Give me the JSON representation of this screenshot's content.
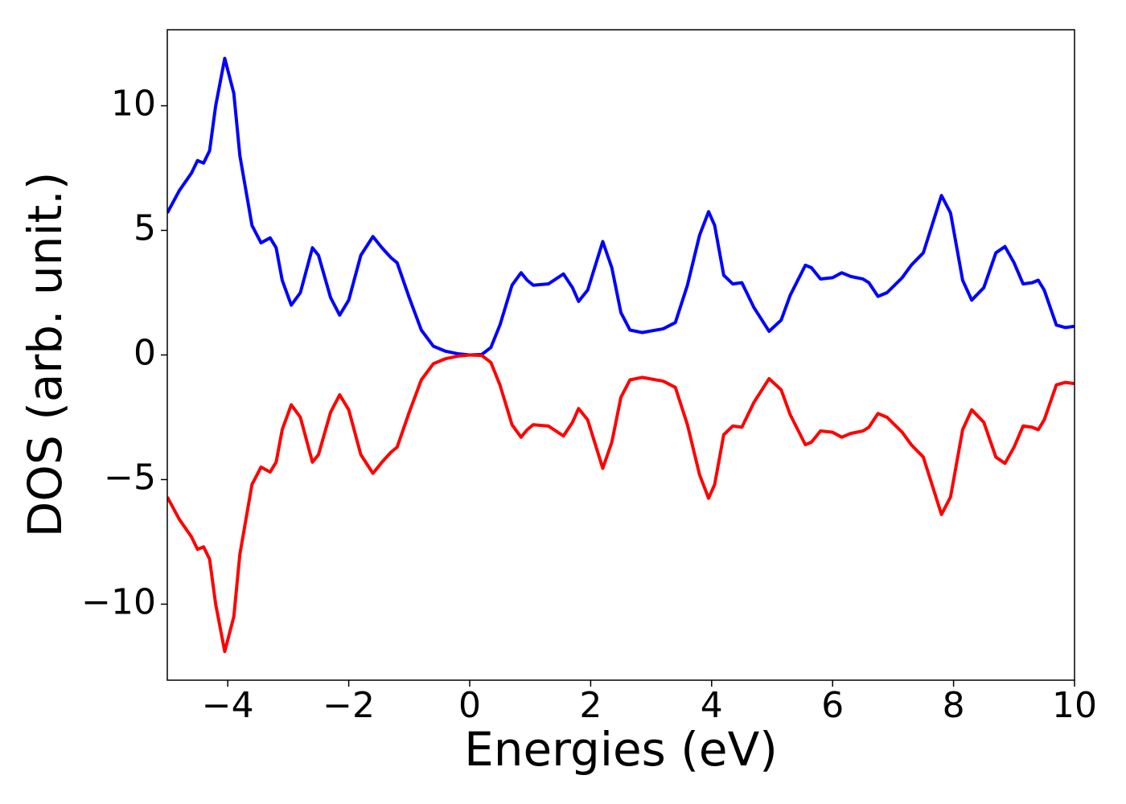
{
  "chart_data": {
    "type": "line",
    "xlabel": "Energies (eV)",
    "ylabel": "DOS (arb. unit.)",
    "x": [
      -5,
      -4.8,
      -4.6,
      -4.5,
      -4.4,
      -4.3,
      -4.2,
      -4.05,
      -3.9,
      -3.8,
      -3.6,
      -3.45,
      -3.3,
      -3.2,
      -3.1,
      -2.95,
      -2.8,
      -2.6,
      -2.5,
      -2.3,
      -2.15,
      -2.0,
      -1.8,
      -1.6,
      -1.45,
      -1.3,
      -1.2,
      -1.0,
      -0.8,
      -0.6,
      -0.4,
      -0.2,
      0,
      0.2,
      0.35,
      0.5,
      0.7,
      0.85,
      0.95,
      1.05,
      1.3,
      1.55,
      1.7,
      1.8,
      1.95,
      2.2,
      2.35,
      2.5,
      2.65,
      2.85,
      3.2,
      3.4,
      3.6,
      3.8,
      3.95,
      4.05,
      4.2,
      4.35,
      4.5,
      4.7,
      4.95,
      5.15,
      5.3,
      5.55,
      5.65,
      5.8,
      6.0,
      6.15,
      6.3,
      6.5,
      6.6,
      6.75,
      6.9,
      7.15,
      7.3,
      7.5,
      7.8,
      7.95,
      8.15,
      8.3,
      8.5,
      8.7,
      8.85,
      9.0,
      9.15,
      9.3,
      9.4,
      9.5,
      9.7,
      9.85,
      10
    ],
    "series": [
      {
        "color": "#0000ff",
        "values": [
          5.7,
          6.6,
          7.3,
          7.8,
          7.7,
          8.2,
          10.0,
          11.9,
          10.5,
          8.0,
          5.2,
          4.5,
          4.7,
          4.3,
          3.0,
          2.0,
          2.5,
          4.3,
          4.0,
          2.3,
          1.6,
          2.2,
          4.0,
          4.75,
          4.3,
          3.9,
          3.7,
          2.3,
          1.0,
          0.35,
          0.15,
          0.05,
          0,
          0.02,
          0.3,
          1.2,
          2.8,
          3.3,
          3.0,
          2.8,
          2.85,
          3.25,
          2.7,
          2.15,
          2.6,
          4.55,
          3.5,
          1.7,
          1.0,
          0.9,
          1.05,
          1.3,
          2.8,
          4.8,
          5.75,
          5.2,
          3.2,
          2.85,
          2.9,
          1.9,
          0.95,
          1.4,
          2.4,
          3.6,
          3.5,
          3.05,
          3.1,
          3.3,
          3.15,
          3.05,
          2.9,
          2.35,
          2.5,
          3.1,
          3.6,
          4.1,
          6.4,
          5.7,
          3.0,
          2.2,
          2.7,
          4.1,
          4.35,
          3.7,
          2.85,
          2.9,
          3.0,
          2.6,
          1.2,
          1.1,
          1.15
        ]
      },
      {
        "color": "#ff0000",
        "values": [
          -5.7,
          -6.6,
          -7.3,
          -7.8,
          -7.7,
          -8.2,
          -10.0,
          -11.9,
          -10.5,
          -8.0,
          -5.2,
          -4.5,
          -4.7,
          -4.3,
          -3.0,
          -2.0,
          -2.5,
          -4.3,
          -4.0,
          -2.3,
          -1.6,
          -2.2,
          -4.0,
          -4.75,
          -4.3,
          -3.9,
          -3.7,
          -2.3,
          -1.0,
          -0.35,
          -0.15,
          -0.05,
          0,
          -0.02,
          -0.3,
          -1.2,
          -2.8,
          -3.3,
          -3.0,
          -2.8,
          -2.85,
          -3.25,
          -2.7,
          -2.15,
          -2.6,
          -4.55,
          -3.5,
          -1.7,
          -1.0,
          -0.9,
          -1.05,
          -1.3,
          -2.8,
          -4.8,
          -5.75,
          -5.2,
          -3.2,
          -2.85,
          -2.9,
          -1.9,
          -0.95,
          -1.4,
          -2.4,
          -3.6,
          -3.5,
          -3.05,
          -3.1,
          -3.3,
          -3.15,
          -3.05,
          -2.9,
          -2.35,
          -2.5,
          -3.1,
          -3.6,
          -4.1,
          -6.4,
          -5.7,
          -3.0,
          -2.2,
          -2.7,
          -4.1,
          -4.35,
          -3.7,
          -2.85,
          -2.9,
          -3.0,
          -2.6,
          -1.2,
          -1.1,
          -1.15
        ]
      }
    ],
    "xlim": [
      -5,
      10
    ],
    "xticks": [
      {
        "value": -4,
        "label": "−4"
      },
      {
        "value": -2,
        "label": "−2"
      },
      0,
      2,
      4,
      6,
      8,
      10
    ],
    "ylim": [
      -13.05,
      13.05
    ],
    "yticks": [
      {
        "value": -10,
        "label": "−10"
      },
      {
        "value": -5,
        "label": "−5"
      },
      0,
      5,
      10
    ],
    "grid": false
  }
}
